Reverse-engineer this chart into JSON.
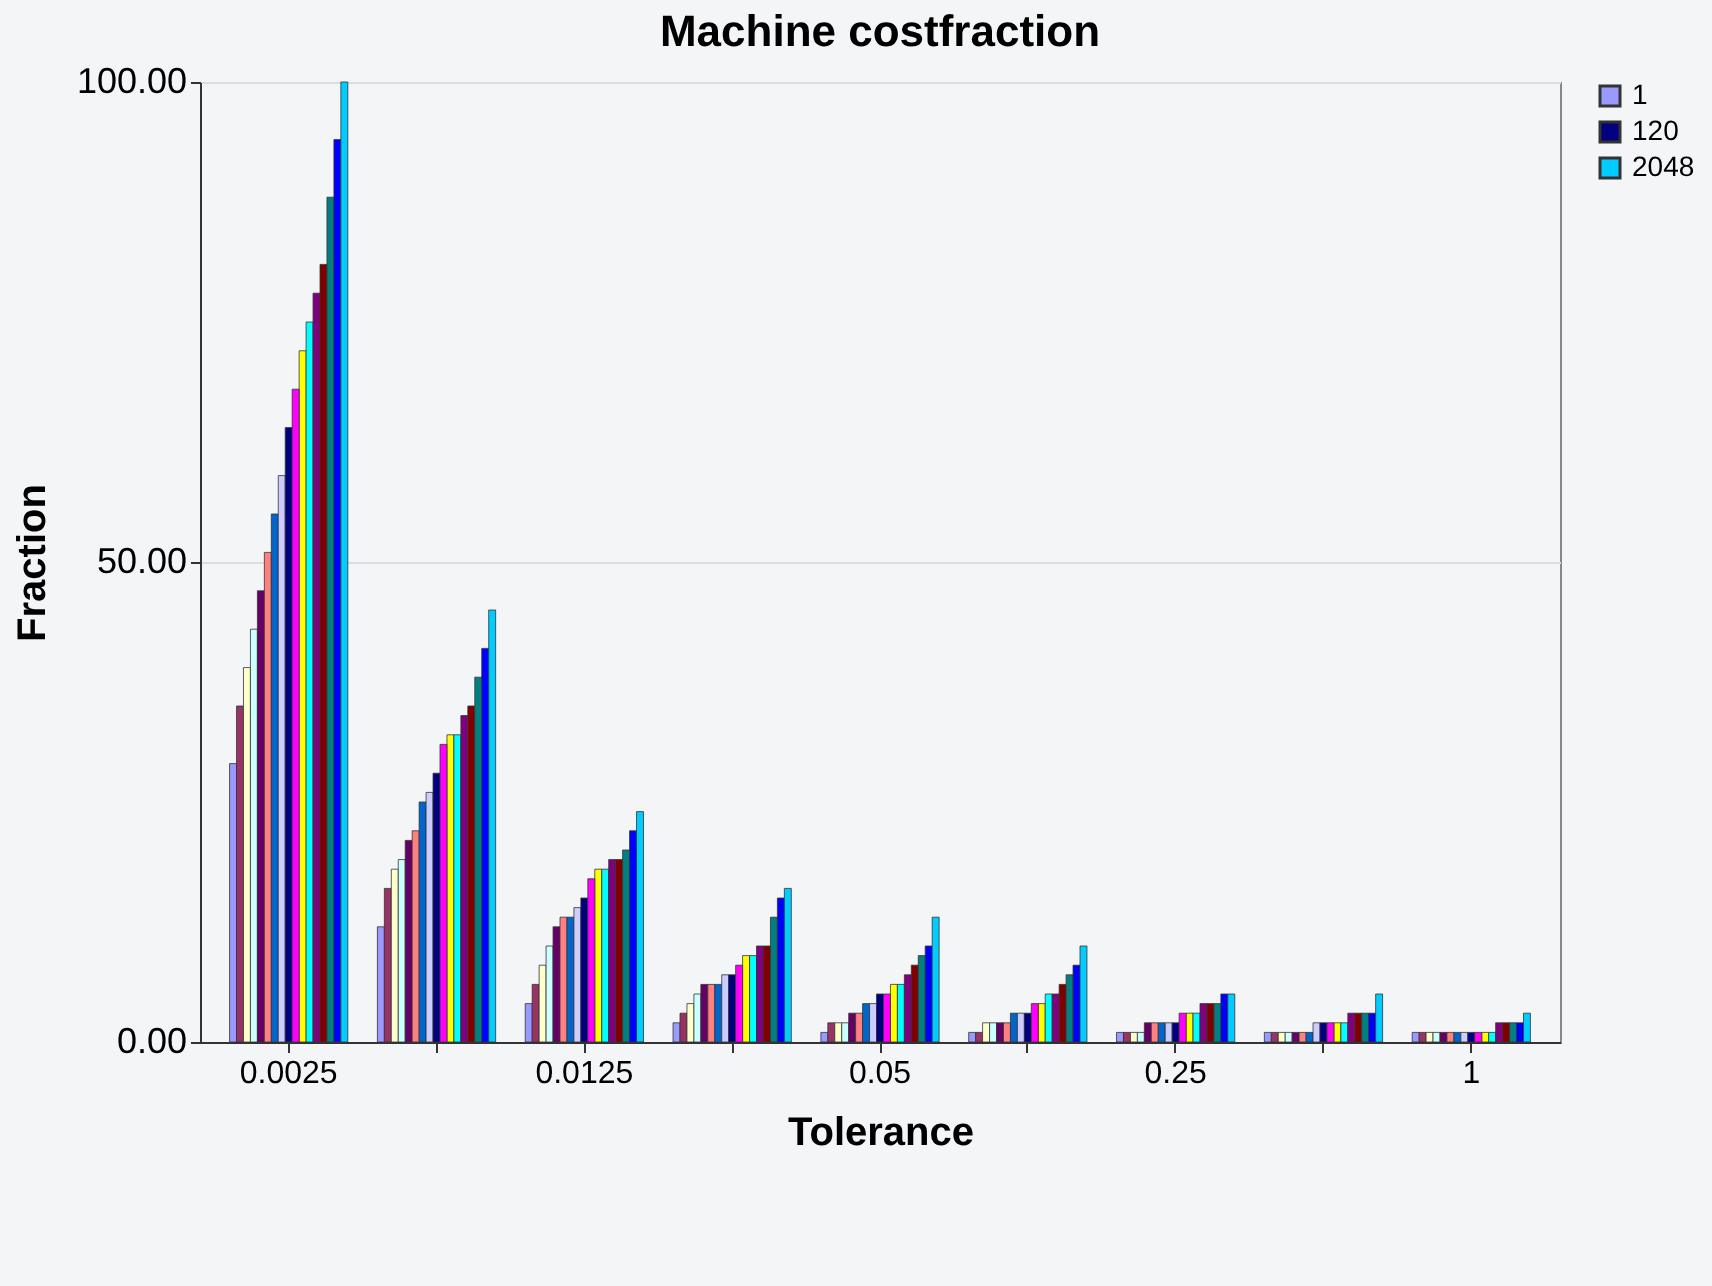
{
  "chart_data": {
    "type": "bar",
    "title": "Machine costfraction",
    "xlabel": "Tolerance",
    "ylabel": "Fraction",
    "categories": [
      "0.0025",
      null,
      "0.0125",
      null,
      "0.05",
      null,
      "0.25",
      null,
      "1"
    ],
    "ylim": [
      0,
      100
    ],
    "yticks": [
      {
        "value": 0,
        "label": "0.00"
      },
      {
        "value": 50,
        "label": "50.00"
      },
      {
        "value": 100,
        "label": "100.00"
      }
    ],
    "grid": "y",
    "legend": "right",
    "series": [
      {
        "name": "1",
        "color": "#9999ff",
        "values": [
          29,
          12,
          4,
          2,
          1,
          1,
          1,
          1,
          1
        ]
      },
      {
        "color": "#993366",
        "values": [
          35,
          16,
          6,
          3,
          2,
          1,
          1,
          1,
          1
        ]
      },
      {
        "color": "#ffffcc",
        "values": [
          39,
          18,
          8,
          4,
          2,
          2,
          1,
          1,
          1
        ]
      },
      {
        "color": "#ccffff",
        "values": [
          43,
          19,
          10,
          5,
          2,
          2,
          1,
          1,
          1
        ]
      },
      {
        "color": "#660066",
        "values": [
          47,
          21,
          12,
          6,
          3,
          2,
          2,
          1,
          1
        ]
      },
      {
        "color": "#ff8080",
        "values": [
          51,
          22,
          13,
          6,
          3,
          2,
          2,
          1,
          1
        ]
      },
      {
        "color": "#0066cc",
        "values": [
          55,
          25,
          13,
          6,
          4,
          3,
          2,
          1,
          1
        ]
      },
      {
        "color": "#ccccff",
        "values": [
          59,
          26,
          14,
          7,
          4,
          3,
          2,
          2,
          1
        ]
      },
      {
        "name": "120",
        "color": "#000080",
        "values": [
          64,
          28,
          15,
          7,
          5,
          3,
          2,
          2,
          1
        ]
      },
      {
        "color": "#ff00ff",
        "values": [
          68,
          31,
          17,
          8,
          5,
          4,
          3,
          2,
          1
        ]
      },
      {
        "color": "#ffff00",
        "values": [
          72,
          32,
          18,
          9,
          6,
          4,
          3,
          2,
          1
        ]
      },
      {
        "color": "#00ffff",
        "values": [
          75,
          32,
          18,
          9,
          6,
          5,
          3,
          2,
          1
        ]
      },
      {
        "color": "#800080",
        "values": [
          78,
          34,
          19,
          10,
          7,
          5,
          4,
          3,
          2
        ]
      },
      {
        "color": "#800000",
        "values": [
          81,
          35,
          19,
          10,
          8,
          6,
          4,
          3,
          2
        ]
      },
      {
        "color": "#008080",
        "values": [
          88,
          38,
          20,
          13,
          9,
          7,
          4,
          3,
          2
        ]
      },
      {
        "color": "#0000ff",
        "values": [
          94,
          41,
          22,
          15,
          10,
          8,
          5,
          3,
          2
        ]
      },
      {
        "name": "2048",
        "color": "#00ccff",
        "values": [
          100,
          45,
          24,
          16,
          13,
          10,
          5,
          5,
          3
        ]
      }
    ]
  }
}
